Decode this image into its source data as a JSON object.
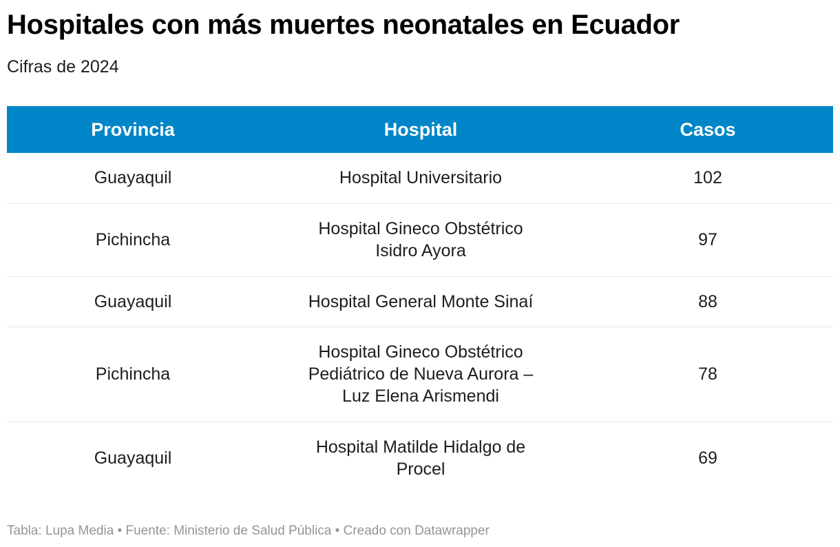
{
  "title": "Hospitales con más muertes neonatales en Ecuador",
  "subtitle": "Cifras de 2024",
  "table": {
    "headers": [
      "Provincia",
      "Hospital",
      "Casos"
    ],
    "rows": [
      {
        "provincia": "Guayaquil",
        "hospital": "Hospital Universitario",
        "casos": "102"
      },
      {
        "provincia": "Pichincha",
        "hospital": "Hospital Gineco Obstétrico Isidro Ayora",
        "casos": "97"
      },
      {
        "provincia": "Guayaquil",
        "hospital": "Hospital General Monte Sinaí",
        "casos": "88"
      },
      {
        "provincia": "Pichincha",
        "hospital": "Hospital Gineco Obstétrico Pediátrico de Nueva Aurora – Luz Elena Arismendi",
        "casos": "78"
      },
      {
        "provincia": "Guayaquil",
        "hospital": "Hospital Matilde Hidalgo de Procel",
        "casos": "69"
      }
    ]
  },
  "footer": "Tabla: Lupa Media • Fuente: Ministerio de Salud Pública • Creado con Datawrapper",
  "colors": {
    "header_background": "#0085c8",
    "header_text": "#ffffff",
    "footer_text": "#959595"
  }
}
